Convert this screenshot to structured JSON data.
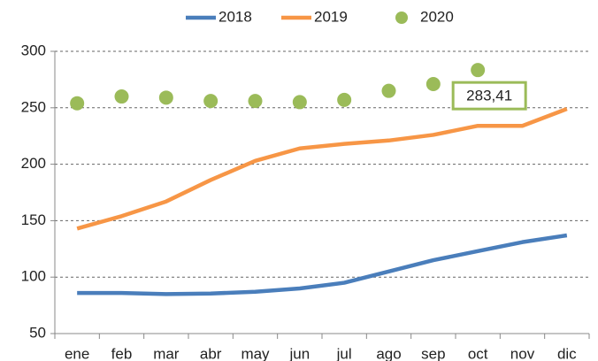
{
  "chart_data": {
    "type": "line",
    "categories": [
      "ene",
      "feb",
      "mar",
      "abr",
      "may",
      "jun",
      "jul",
      "ago",
      "sep",
      "oct",
      "nov",
      "dic"
    ],
    "series": [
      {
        "name": "2018",
        "color": "#4a7ebb",
        "values": [
          86,
          86,
          85,
          85.5,
          87,
          90,
          95,
          105,
          115,
          123,
          131,
          137
        ]
      },
      {
        "name": "2019",
        "color": "#f79646",
        "values": [
          143,
          154,
          167,
          186,
          203,
          214,
          218,
          221,
          226,
          234,
          234,
          249
        ]
      },
      {
        "name": "2020",
        "color": "#9bbb59",
        "type": "scatter",
        "values": [
          254,
          260,
          259,
          256,
          256,
          255,
          257,
          265,
          271,
          283.41,
          null,
          null
        ],
        "value_labels": [
          null,
          null,
          null,
          null,
          null,
          null,
          null,
          null,
          null,
          "283,41",
          null,
          null
        ]
      }
    ],
    "ylim": [
      50,
      300
    ],
    "yticks": [
      50,
      100,
      150,
      200,
      250,
      300
    ],
    "grid": true,
    "legend": "top"
  }
}
